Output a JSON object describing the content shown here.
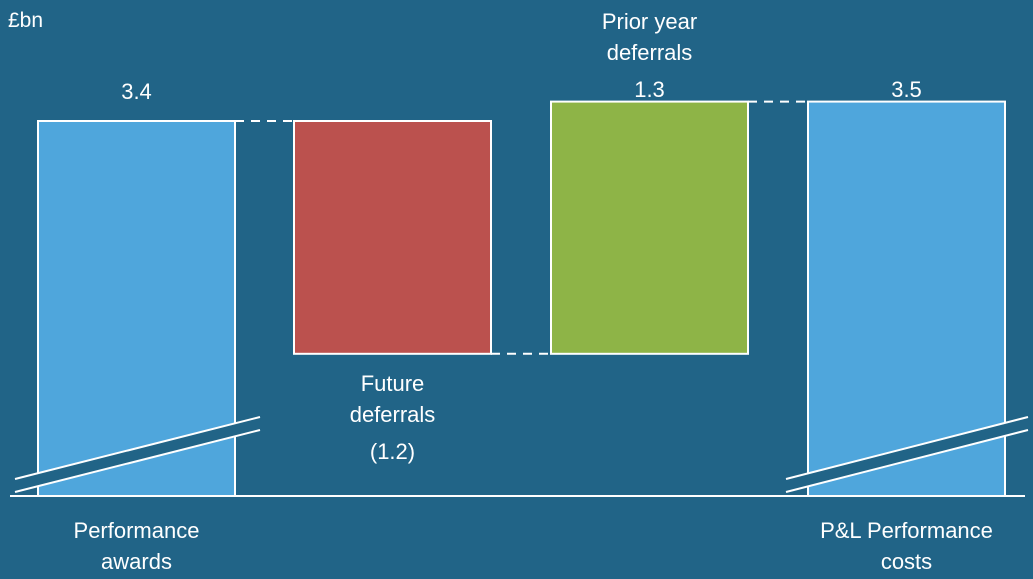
{
  "chart_data": {
    "type": "waterfall",
    "unit_label": "£bn",
    "axis_break": true,
    "bars": [
      {
        "name": "Performance awards",
        "label_lines": [
          "Performance",
          "awards"
        ],
        "value": 3.4,
        "value_label": "3.4",
        "kind": "total",
        "color": "#4fa6dc"
      },
      {
        "name": "Future deferrals",
        "label_lines": [
          "Future",
          "deferrals"
        ],
        "value": -1.2,
        "value_label": "(1.2)",
        "kind": "delta",
        "color": "#bb514e"
      },
      {
        "name": "Prior year deferrals",
        "label_lines": [
          "Prior year",
          "deferrals"
        ],
        "value": 1.3,
        "value_label": "1.3",
        "kind": "delta",
        "color": "#8eb447"
      },
      {
        "name": "P&L Performance costs",
        "label_lines": [
          "P&L Performance",
          "costs"
        ],
        "value": 3.5,
        "value_label": "3.5",
        "kind": "total",
        "color": "#4fa6dc"
      }
    ]
  }
}
